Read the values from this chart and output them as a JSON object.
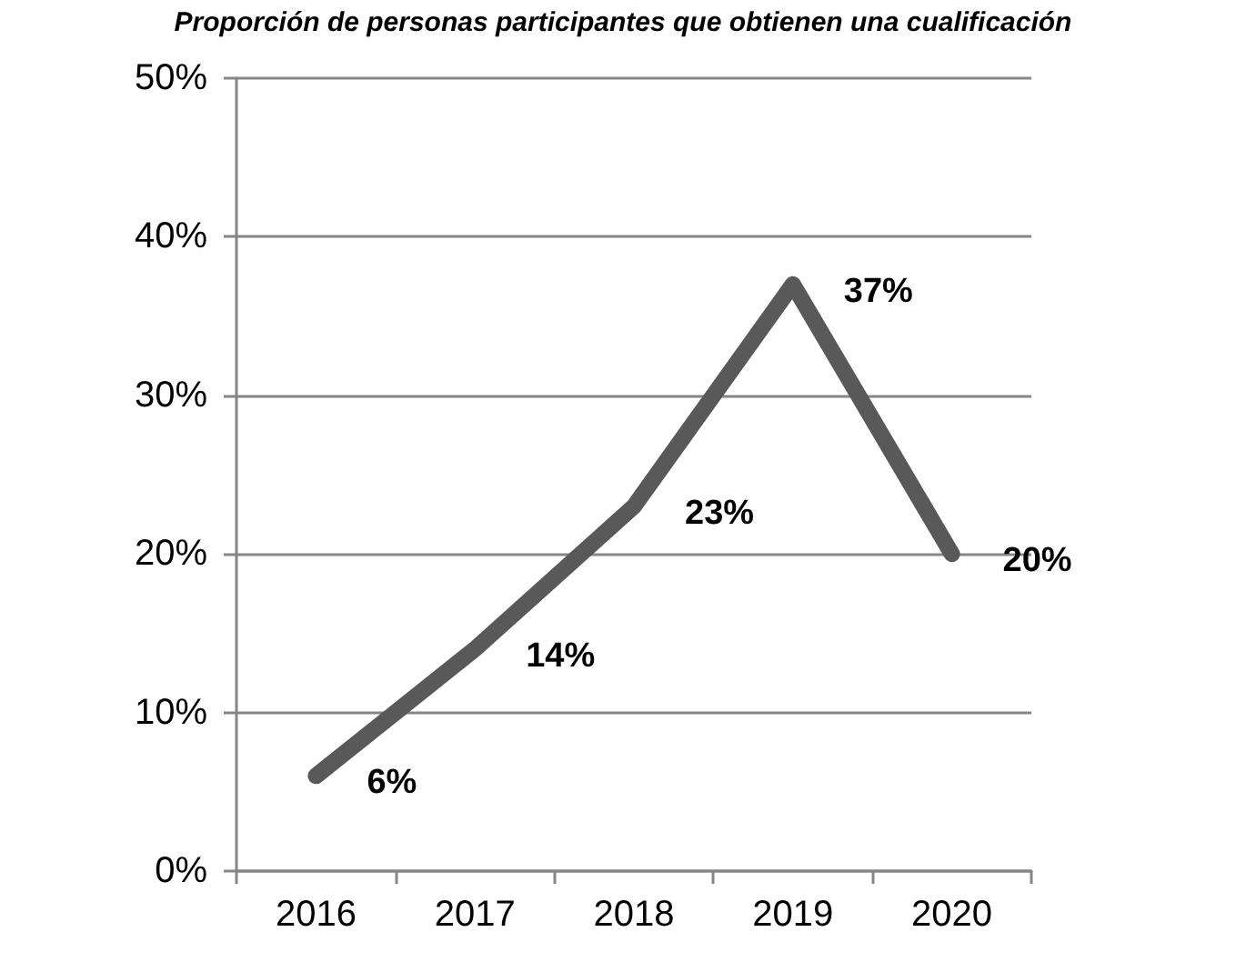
{
  "chart_data": {
    "type": "line",
    "title": "Proporción de personas participantes que obtienen una cualificación",
    "categories": [
      "2016",
      "2017",
      "2018",
      "2019",
      "2020"
    ],
    "series": [
      {
        "color": "#595959",
        "values": [
          6,
          14,
          23,
          37,
          20
        ],
        "value_labels": [
          "6%",
          "14%",
          "23%",
          "37%",
          "20%"
        ]
      }
    ],
    "ylim": [
      0,
      50
    ],
    "yticks": [
      {
        "value": 0,
        "label": "0%"
      },
      {
        "value": 10,
        "label": "10%"
      },
      {
        "value": 20,
        "label": "20%"
      },
      {
        "value": 30,
        "label": "30%"
      },
      {
        "value": 40,
        "label": "40%"
      },
      {
        "value": 50,
        "label": "50%"
      }
    ],
    "grid": "y",
    "marker": "none",
    "line_style": "solid"
  }
}
